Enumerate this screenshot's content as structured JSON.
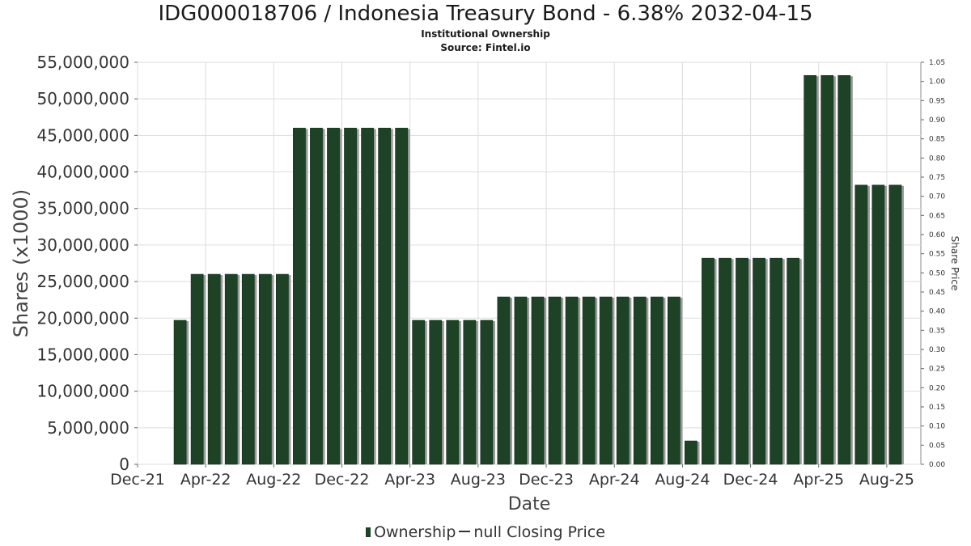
{
  "chart_data": {
    "type": "bar",
    "title": "IDG000018706 / Indonesia Treasury Bond - 6.38% 2032-04-15",
    "subtitle": "Institutional Ownership",
    "source": "Source: Fintel.io",
    "xlabel": "Date",
    "ylabel": "Shares (x1000)",
    "y2label": "Share Price",
    "ylim": [
      0,
      55000000
    ],
    "y2lim": [
      0,
      1.05
    ],
    "x_range": [
      "2021-12",
      "2025-10"
    ],
    "grid": true,
    "legend_position": "bottom",
    "bar_color": "#1e4226",
    "shadow_color": "#9a9a9a",
    "yticks": [
      "0",
      "5,000,000",
      "10,000,000",
      "15,000,000",
      "20,000,000",
      "25,000,000",
      "30,000,000",
      "35,000,000",
      "40,000,000",
      "45,000,000",
      "50,000,000",
      "55,000,000"
    ],
    "y2ticks": [
      "0.00",
      "0.05",
      "0.10",
      "0.15",
      "0.20",
      "0.25",
      "0.30",
      "0.35",
      "0.40",
      "0.45",
      "0.50",
      "0.55",
      "0.60",
      "0.65",
      "0.70",
      "0.75",
      "0.80",
      "0.85",
      "0.90",
      "0.95",
      "1.00",
      "1.05"
    ],
    "xticks": [
      "Dec-21",
      "Apr-22",
      "Aug-22",
      "Dec-22",
      "Apr-23",
      "Aug-23",
      "Dec-23",
      "Apr-24",
      "Aug-24",
      "Dec-24",
      "Apr-25",
      "Aug-25"
    ],
    "series": [
      {
        "name": "Ownership",
        "points": [
          {
            "date": "2022-02",
            "value": 19700000
          },
          {
            "date": "2022-03",
            "value": 26000000
          },
          {
            "date": "2022-04",
            "value": 26000000
          },
          {
            "date": "2022-05",
            "value": 26000000
          },
          {
            "date": "2022-06",
            "value": 26000000
          },
          {
            "date": "2022-07",
            "value": 26000000
          },
          {
            "date": "2022-08",
            "value": 26000000
          },
          {
            "date": "2022-09",
            "value": 46000000
          },
          {
            "date": "2022-10",
            "value": 46000000
          },
          {
            "date": "2022-11",
            "value": 46000000
          },
          {
            "date": "2022-12",
            "value": 46000000
          },
          {
            "date": "2023-01",
            "value": 46000000
          },
          {
            "date": "2023-02",
            "value": 46000000
          },
          {
            "date": "2023-03",
            "value": 46000000
          },
          {
            "date": "2023-04",
            "value": 19700000
          },
          {
            "date": "2023-05",
            "value": 19700000
          },
          {
            "date": "2023-06",
            "value": 19700000
          },
          {
            "date": "2023-07",
            "value": 19700000
          },
          {
            "date": "2023-08",
            "value": 19700000
          },
          {
            "date": "2023-09",
            "value": 22900000
          },
          {
            "date": "2023-10",
            "value": 22900000
          },
          {
            "date": "2023-11",
            "value": 22900000
          },
          {
            "date": "2023-12",
            "value": 22900000
          },
          {
            "date": "2024-01",
            "value": 22900000
          },
          {
            "date": "2024-02",
            "value": 22900000
          },
          {
            "date": "2024-03",
            "value": 22900000
          },
          {
            "date": "2024-04",
            "value": 22900000
          },
          {
            "date": "2024-05",
            "value": 22900000
          },
          {
            "date": "2024-06",
            "value": 22900000
          },
          {
            "date": "2024-07",
            "value": 22900000
          },
          {
            "date": "2024-08",
            "value": 3200000
          },
          {
            "date": "2024-09",
            "value": 28200000
          },
          {
            "date": "2024-10",
            "value": 28200000
          },
          {
            "date": "2024-11",
            "value": 28200000
          },
          {
            "date": "2024-12",
            "value": 28200000
          },
          {
            "date": "2025-01",
            "value": 28200000
          },
          {
            "date": "2025-02",
            "value": 28200000
          },
          {
            "date": "2025-03",
            "value": 53200000
          },
          {
            "date": "2025-04",
            "value": 53200000
          },
          {
            "date": "2025-05",
            "value": 53200000
          },
          {
            "date": "2025-06",
            "value": 38200000
          },
          {
            "date": "2025-07",
            "value": 38200000
          },
          {
            "date": "2025-08",
            "value": 38200000
          }
        ]
      },
      {
        "name": "null Closing Price",
        "points": []
      }
    ]
  }
}
